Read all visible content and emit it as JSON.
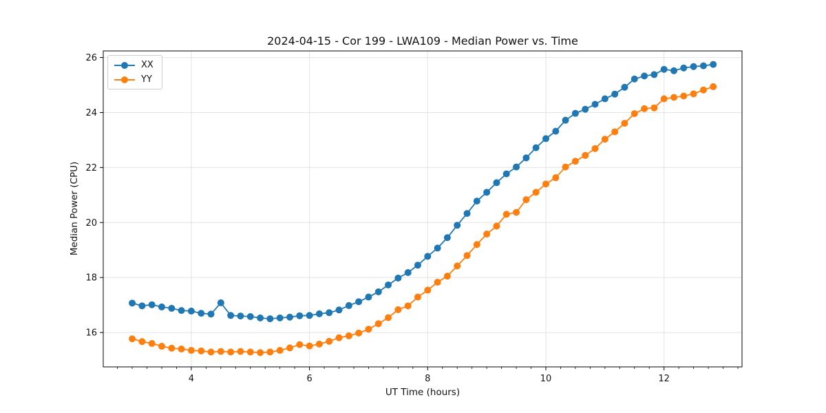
{
  "chart_data": {
    "type": "line",
    "title": "2024-04-15 - Cor 199 - LWA109 - Median Power vs. Time",
    "xlabel": "UT Time (hours)",
    "ylabel": "Median Power (CPU)",
    "xlim": [
      2.51,
      13.32
    ],
    "ylim": [
      14.75,
      26.24
    ],
    "xticks": [
      4,
      6,
      8,
      10,
      12
    ],
    "yticks": [
      16,
      18,
      20,
      22,
      24,
      26
    ],
    "minor_tick_step_x": 0.25,
    "grid": true,
    "legend_position": "upper left",
    "marker": "circle",
    "style": {
      "grid_color": "#e2e2e2",
      "spine_color": "#000000",
      "text_color": "#111111",
      "background": "#ffffff"
    },
    "x": [
      3.0,
      3.167,
      3.333,
      3.5,
      3.667,
      3.833,
      4.0,
      4.167,
      4.333,
      4.5,
      4.667,
      4.833,
      5.0,
      5.167,
      5.333,
      5.5,
      5.667,
      5.833,
      6.0,
      6.167,
      6.333,
      6.5,
      6.667,
      6.833,
      7.0,
      7.167,
      7.333,
      7.5,
      7.667,
      7.833,
      8.0,
      8.167,
      8.333,
      8.5,
      8.667,
      8.833,
      9.0,
      9.167,
      9.333,
      9.5,
      9.667,
      9.833,
      10.0,
      10.167,
      10.333,
      10.5,
      10.667,
      10.833,
      11.0,
      11.167,
      11.333,
      11.5,
      11.667,
      11.833,
      12.0,
      12.167,
      12.333,
      12.5,
      12.667,
      12.833
    ],
    "series": [
      {
        "name": "XX",
        "color": "#1f77b4",
        "values": [
          17.07,
          16.97,
          17.01,
          16.93,
          16.88,
          16.8,
          16.78,
          16.7,
          16.67,
          17.08,
          16.62,
          16.6,
          16.58,
          16.53,
          16.5,
          16.53,
          16.56,
          16.61,
          16.62,
          16.68,
          16.72,
          16.82,
          16.98,
          17.12,
          17.29,
          17.48,
          17.73,
          17.98,
          18.18,
          18.45,
          18.77,
          19.07,
          19.45,
          19.9,
          20.33,
          20.78,
          21.1,
          21.45,
          21.77,
          22.02,
          22.35,
          22.72,
          23.05,
          23.32,
          23.72,
          23.97,
          24.12,
          24.3,
          24.5,
          24.67,
          24.92,
          25.22,
          25.33,
          25.38,
          25.57,
          25.52,
          25.62,
          25.67,
          25.7,
          25.75
        ]
      },
      {
        "name": "YY",
        "color": "#ff7f0e",
        "values": [
          15.77,
          15.67,
          15.6,
          15.5,
          15.43,
          15.4,
          15.35,
          15.33,
          15.29,
          15.31,
          15.29,
          15.31,
          15.29,
          15.27,
          15.29,
          15.35,
          15.44,
          15.56,
          15.51,
          15.58,
          15.68,
          15.81,
          15.88,
          15.98,
          16.12,
          16.32,
          16.54,
          16.83,
          16.97,
          17.29,
          17.54,
          17.83,
          18.05,
          18.42,
          18.8,
          19.2,
          19.58,
          19.87,
          20.3,
          20.37,
          20.83,
          21.1,
          21.4,
          21.63,
          22.02,
          22.23,
          22.44,
          22.69,
          23.03,
          23.3,
          23.61,
          23.96,
          24.14,
          24.17,
          24.5,
          24.55,
          24.6,
          24.68,
          24.82,
          24.94
        ]
      }
    ]
  }
}
